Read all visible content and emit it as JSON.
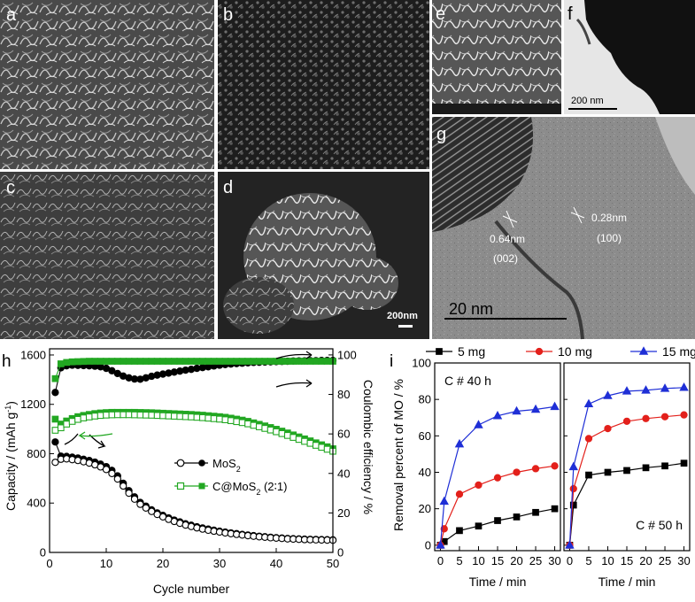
{
  "micrographs": {
    "panels": [
      {
        "label": "a",
        "kind": "sem"
      },
      {
        "label": "b",
        "kind": "sem"
      },
      {
        "label": "c",
        "kind": "sem"
      },
      {
        "label": "d",
        "kind": "sem"
      },
      {
        "label": "e",
        "kind": "sem"
      },
      {
        "label": "f",
        "kind": "tem"
      },
      {
        "label": "g",
        "kind": "hrtem"
      }
    ],
    "scalebars": {
      "d": "200nm",
      "f": "200 nm",
      "g": "20 nm"
    },
    "lattice": [
      {
        "spacing": "0.64nm",
        "plane": "(002)"
      },
      {
        "spacing": "0.28nm",
        "plane": "(100)"
      }
    ]
  },
  "chart_data": [
    {
      "panel": "h",
      "type": "line",
      "xlabel": "Cycle number",
      "ylabel": "Capacity / (mAh g",
      "ylabel_sup": "-1",
      "ylabel_suffix": ")",
      "y2label": "Coulombic efficiency / %",
      "xlim": [
        0,
        50
      ],
      "ylim": [
        0,
        1650
      ],
      "y2lim": [
        0,
        103.1
      ],
      "xticks": [
        "0",
        "10",
        "20",
        "30",
        "40",
        "50"
      ],
      "yticks": [
        "0",
        "400",
        "800",
        "1200",
        "1600"
      ],
      "y2ticks": [
        "0",
        "20",
        "40",
        "60",
        "80",
        "100"
      ],
      "legend": [
        {
          "label": "MoS",
          "sub": "2",
          "suffix": "",
          "color": "#000000"
        },
        {
          "label": "C@MoS",
          "sub": "2",
          "suffix": " (2∶1)",
          "color": "#22a722"
        }
      ],
      "legend_position": "center-right",
      "series": [
        {
          "group": "MoS2",
          "kind": "charge",
          "axis": "left",
          "color": "#000000",
          "marker": "filled",
          "x": [
            1,
            2,
            3,
            4,
            5,
            6,
            7,
            8,
            9,
            10,
            11,
            12,
            13,
            14,
            15,
            16,
            17,
            18,
            19,
            20,
            21,
            22,
            23,
            24,
            25,
            26,
            27,
            28,
            29,
            30,
            31,
            32,
            33,
            34,
            35,
            36,
            37,
            38,
            39,
            40,
            41,
            42,
            43,
            44,
            45,
            46,
            47,
            48,
            49,
            50
          ],
          "y": [
            895,
            780,
            778,
            772,
            765,
            755,
            745,
            732,
            715,
            695,
            665,
            620,
            560,
            500,
            450,
            405,
            375,
            345,
            320,
            300,
            280,
            262,
            247,
            232,
            220,
            208,
            198,
            189,
            180,
            172,
            165,
            158,
            152,
            146,
            141,
            136,
            131,
            127,
            123,
            119,
            116,
            113,
            111,
            109,
            107,
            106,
            105,
            104,
            103,
            102
          ]
        },
        {
          "group": "MoS2",
          "kind": "discharge",
          "axis": "left",
          "color": "#000000",
          "marker": "open",
          "x": [
            1,
            2,
            3,
            4,
            5,
            6,
            7,
            8,
            9,
            10,
            11,
            12,
            13,
            14,
            15,
            16,
            17,
            18,
            19,
            20,
            21,
            22,
            23,
            24,
            25,
            26,
            27,
            28,
            29,
            30,
            31,
            32,
            33,
            34,
            35,
            36,
            37,
            38,
            39,
            40,
            41,
            42,
            43,
            44,
            45,
            46,
            47,
            48,
            49,
            50
          ],
          "y": [
            730,
            755,
            758,
            752,
            745,
            735,
            724,
            710,
            693,
            672,
            640,
            595,
            538,
            480,
            432,
            390,
            360,
            332,
            308,
            288,
            268,
            251,
            236,
            222,
            210,
            199,
            189,
            180,
            172,
            165,
            158,
            152,
            146,
            141,
            136,
            131,
            127,
            123,
            119,
            116,
            113,
            110,
            108,
            106,
            104,
            103,
            102,
            101,
            100,
            99
          ]
        },
        {
          "group": "C@MoS2",
          "kind": "charge",
          "axis": "left",
          "color": "#22a722",
          "marker": "filled",
          "x": [
            1,
            2,
            3,
            4,
            5,
            6,
            7,
            8,
            9,
            10,
            11,
            12,
            13,
            14,
            15,
            16,
            17,
            18,
            19,
            20,
            21,
            22,
            23,
            24,
            25,
            26,
            27,
            28,
            29,
            30,
            31,
            32,
            33,
            34,
            35,
            36,
            37,
            38,
            39,
            40,
            41,
            42,
            43,
            44,
            45,
            46,
            47,
            48,
            49,
            50
          ],
          "y": [
            1080,
            1040,
            1065,
            1085,
            1100,
            1110,
            1118,
            1125,
            1130,
            1133,
            1135,
            1135,
            1135,
            1135,
            1135,
            1134,
            1133,
            1132,
            1130,
            1128,
            1126,
            1124,
            1122,
            1120,
            1118,
            1115,
            1112,
            1108,
            1104,
            1100,
            1095,
            1088,
            1080,
            1072,
            1062,
            1050,
            1038,
            1025,
            1012,
            998,
            983,
            968,
            952,
            936,
            920,
            904,
            888,
            872,
            856,
            840
          ]
        },
        {
          "group": "C@MoS2",
          "kind": "discharge",
          "axis": "left",
          "color": "#22a722",
          "marker": "open",
          "x": [
            1,
            2,
            3,
            4,
            5,
            6,
            7,
            8,
            9,
            10,
            11,
            12,
            13,
            14,
            15,
            16,
            17,
            18,
            19,
            20,
            21,
            22,
            23,
            24,
            25,
            26,
            27,
            28,
            29,
            30,
            31,
            32,
            33,
            34,
            35,
            36,
            37,
            38,
            39,
            40,
            41,
            42,
            43,
            44,
            45,
            46,
            47,
            48,
            49,
            50
          ],
          "y": [
            990,
            1010,
            1040,
            1062,
            1078,
            1090,
            1098,
            1105,
            1110,
            1113,
            1115,
            1116,
            1116,
            1116,
            1115,
            1114,
            1113,
            1112,
            1110,
            1108,
            1106,
            1104,
            1102,
            1100,
            1098,
            1095,
            1092,
            1088,
            1084,
            1080,
            1075,
            1068,
            1060,
            1052,
            1042,
            1030,
            1018,
            1005,
            992,
            978,
            963,
            948,
            932,
            916,
            900,
            884,
            868,
            852,
            836,
            820
          ]
        },
        {
          "group": "MoS2",
          "kind": "coulombic-efficiency",
          "axis": "right",
          "color": "#000000",
          "marker": "filled",
          "x": [
            1,
            2,
            3,
            4,
            5,
            6,
            7,
            8,
            9,
            10,
            11,
            12,
            13,
            14,
            15,
            16,
            17,
            18,
            19,
            20,
            21,
            22,
            23,
            24,
            25,
            26,
            27,
            28,
            29,
            30,
            31,
            32,
            33,
            34,
            35,
            36,
            37,
            38,
            39,
            40,
            41,
            42,
            43,
            44,
            45,
            46,
            47,
            48,
            49,
            50
          ],
          "y": [
            81,
            93.5,
            94.5,
            94.8,
            94.7,
            94.6,
            94.5,
            94.3,
            94.0,
            93.2,
            92.0,
            90.6,
            89.3,
            88.4,
            87.8,
            87.7,
            88.4,
            89.2,
            89.8,
            90.3,
            90.8,
            91.3,
            91.8,
            92.3,
            92.7,
            93.2,
            93.6,
            94.0,
            94.4,
            94.8,
            95.1,
            95.4,
            95.6,
            95.8,
            96.0,
            96.2,
            96.3,
            96.4,
            96.5,
            96.6,
            96.7,
            96.8,
            96.9,
            97.0,
            97.0,
            97.1,
            97.1,
            97.2,
            97.2,
            97.2
          ]
        },
        {
          "group": "C@MoS2",
          "kind": "coulombic-efficiency",
          "axis": "right",
          "color": "#22a722",
          "marker": "filled",
          "x": [
            1,
            2,
            3,
            4,
            5,
            6,
            7,
            8,
            9,
            10,
            11,
            12,
            13,
            14,
            15,
            16,
            17,
            18,
            19,
            20,
            21,
            22,
            23,
            24,
            25,
            26,
            27,
            28,
            29,
            30,
            31,
            32,
            33,
            34,
            35,
            36,
            37,
            38,
            39,
            40,
            41,
            42,
            43,
            44,
            45,
            46,
            47,
            48,
            49,
            50
          ],
          "y": [
            88,
            95.5,
            96.2,
            96.5,
            96.6,
            96.7,
            96.8,
            96.8,
            96.8,
            96.8,
            96.8,
            96.8,
            96.8,
            96.8,
            96.8,
            96.8,
            96.8,
            96.8,
            96.8,
            96.8,
            96.8,
            96.8,
            96.8,
            96.8,
            96.8,
            96.8,
            96.8,
            96.8,
            96.8,
            96.8,
            96.8,
            96.8,
            96.8,
            96.8,
            96.8,
            96.8,
            96.8,
            96.8,
            96.8,
            96.8,
            96.8,
            96.8,
            96.8,
            96.8,
            96.8,
            96.8,
            96.8,
            96.8,
            96.8,
            96.8
          ]
        }
      ]
    },
    {
      "panel": "i",
      "type": "line",
      "ylabel": "Removal percent of MO / %",
      "xlabel": "Time / min",
      "ylim": [
        -3,
        100
      ],
      "yticks": [
        "0",
        "20",
        "40",
        "60",
        "80",
        "100"
      ],
      "legend": [
        {
          "label": "5 mg",
          "color": "#000000",
          "marker": "square"
        },
        {
          "label": "10 mg",
          "color": "#e3201b",
          "marker": "circle"
        },
        {
          "label": "15 mg",
          "color": "#1f2fd6",
          "marker": "triangle"
        }
      ],
      "legend_position": "top",
      "subplots": [
        {
          "annotation": "C # 40 h",
          "xlim": [
            -1.5,
            31.5
          ],
          "xticks": [
            "0",
            "5",
            "10",
            "15",
            "20",
            "25",
            "30"
          ],
          "series": [
            {
              "name": "5 mg",
              "x": [
                0,
                1,
                5,
                10,
                15,
                20,
                25,
                30
              ],
              "y": [
                0,
                2,
                8,
                10.5,
                13.5,
                15.5,
                18,
                20
              ]
            },
            {
              "name": "10 mg",
              "x": [
                0,
                1,
                5,
                10,
                15,
                20,
                25,
                30
              ],
              "y": [
                0,
                9,
                28,
                33,
                37,
                40,
                42,
                43.5
              ]
            },
            {
              "name": "15 mg",
              "x": [
                0,
                1,
                5,
                10,
                15,
                20,
                25,
                30
              ],
              "y": [
                0,
                24,
                55.5,
                66,
                71,
                73.5,
                74.5,
                76
              ]
            }
          ]
        },
        {
          "annotation": "C # 50 h",
          "xlim": [
            -1.5,
            31.5
          ],
          "xticks": [
            "0",
            "5",
            "10",
            "15",
            "20",
            "25",
            "30"
          ],
          "series": [
            {
              "name": "5 mg",
              "x": [
                0,
                1,
                5,
                10,
                15,
                20,
                25,
                30
              ],
              "y": [
                0,
                22,
                38.5,
                40,
                41,
                42.5,
                43.5,
                45
              ]
            },
            {
              "name": "10 mg",
              "x": [
                0,
                1,
                5,
                10,
                15,
                20,
                25,
                30
              ],
              "y": [
                0,
                31,
                58.5,
                64,
                68,
                69.5,
                70.5,
                71.5
              ]
            },
            {
              "name": "15 mg",
              "x": [
                0,
                1,
                5,
                10,
                15,
                20,
                25,
                30
              ],
              "y": [
                0,
                43,
                77.5,
                82,
                84.5,
                85,
                86,
                86.5
              ]
            }
          ]
        }
      ]
    }
  ]
}
